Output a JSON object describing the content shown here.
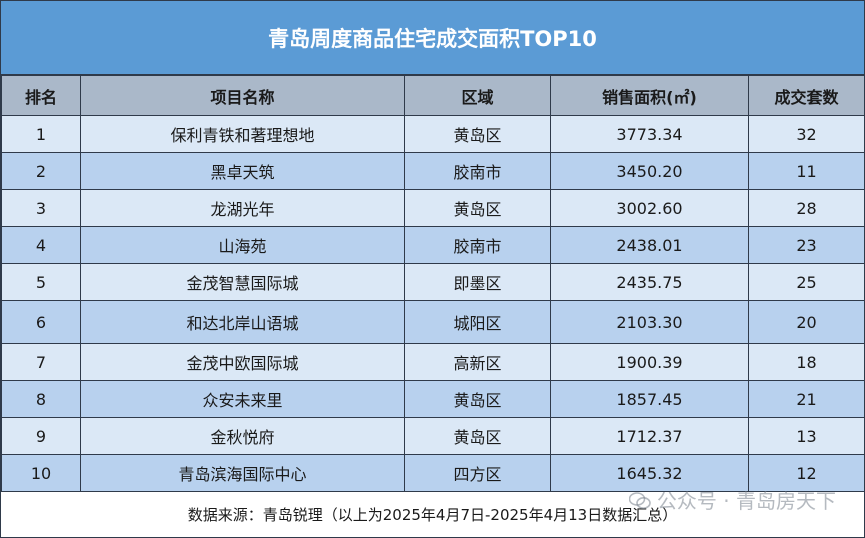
{
  "title": "青岛周度商品住宅成交面积TOP10",
  "headers": [
    "排名",
    "项目名称",
    "区域",
    "销售面积(㎡)",
    "成交套数"
  ],
  "rows": [
    {
      "rank": "1",
      "name": "保利青铁和著理想地",
      "area": "黄岛区",
      "size": "3773.34",
      "units": "32"
    },
    {
      "rank": "2",
      "name": "黑卓天筑",
      "area": "胶南市",
      "size": "3450.20",
      "units": "11"
    },
    {
      "rank": "3",
      "name": "龙湖光年",
      "area": "黄岛区",
      "size": "3002.60",
      "units": "28"
    },
    {
      "rank": "4",
      "name": "山海苑",
      "area": "胶南市",
      "size": "2438.01",
      "units": "23"
    },
    {
      "rank": "5",
      "name": "金茂智慧国际城",
      "area": "即墨区",
      "size": "2435.75",
      "units": "25"
    },
    {
      "rank": "6",
      "name": "和达北岸山语城",
      "area": "城阳区",
      "size": "2103.30",
      "units": "20"
    },
    {
      "rank": "7",
      "name": "金茂中欧国际城",
      "area": "高新区",
      "size": "1900.39",
      "units": "18"
    },
    {
      "rank": "8",
      "name": "众安未来里",
      "area": "黄岛区",
      "size": "1857.45",
      "units": "21"
    },
    {
      "rank": "9",
      "name": "金秋悦府",
      "area": "黄岛区",
      "size": "1712.37",
      "units": "13"
    },
    {
      "rank": "10",
      "name": "青岛滨海国际中心",
      "area": "四方区",
      "size": "1645.32",
      "units": "12"
    }
  ],
  "source": "数据来源：青岛锐理（以上为2025年4月7日-2025年4月13日数据汇总）",
  "watermark": "公众号 · 青岛房天下",
  "colors": {
    "title_bg": "#5b9bd5",
    "header_bg": "#aab8c9",
    "row_light": "#dbe8f6",
    "row_dark": "#b8d1ee"
  }
}
